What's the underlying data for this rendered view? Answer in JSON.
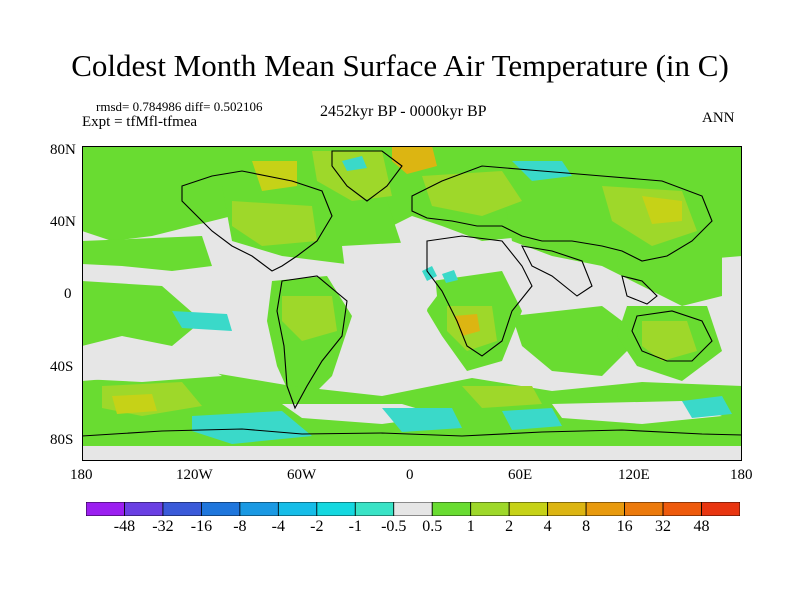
{
  "title": "Coldest Month Mean Surface Air Temperature (in C)",
  "stats": {
    "rmsd_label": "rmsd= 0.784986",
    "diff_label": "diff= 0.502106"
  },
  "experiment": "Expt = tfMfl-tfmea",
  "period": "2452kyr BP - 0000kyr BP",
  "season": "ANN",
  "axes": {
    "y_ticks": [
      "80N",
      "40N",
      "0",
      "40S",
      "80S"
    ],
    "x_ticks": [
      "180",
      "120W",
      "60W",
      "0",
      "60E",
      "120E",
      "180"
    ]
  },
  "colorbar": {
    "labels": [
      "-48",
      "-32",
      "-16",
      "-8",
      "-4",
      "-2",
      "-1",
      "-0.5",
      "0.5",
      "1",
      "2",
      "4",
      "8",
      "16",
      "32",
      "48"
    ],
    "colors": [
      "#9b1ff0",
      "#6a3fe3",
      "#3a5ad9",
      "#1f76dc",
      "#1a99e3",
      "#16bde8",
      "#14d8e0",
      "#39e3c6",
      "#e6e6e6",
      "#69dc31",
      "#9ed82a",
      "#c6d217",
      "#dcb512",
      "#e89a0e",
      "#ec7a0c",
      "#ee5a0c",
      "#e83510"
    ]
  },
  "colors": {
    "land_outline": "#000000",
    "near_zero": "#e6e6e6",
    "light_green": "#69dc31",
    "yellow_green": "#9ed82a",
    "olive": "#c6d217",
    "orange": "#dcb512",
    "cyan": "#3ad9c9"
  }
}
